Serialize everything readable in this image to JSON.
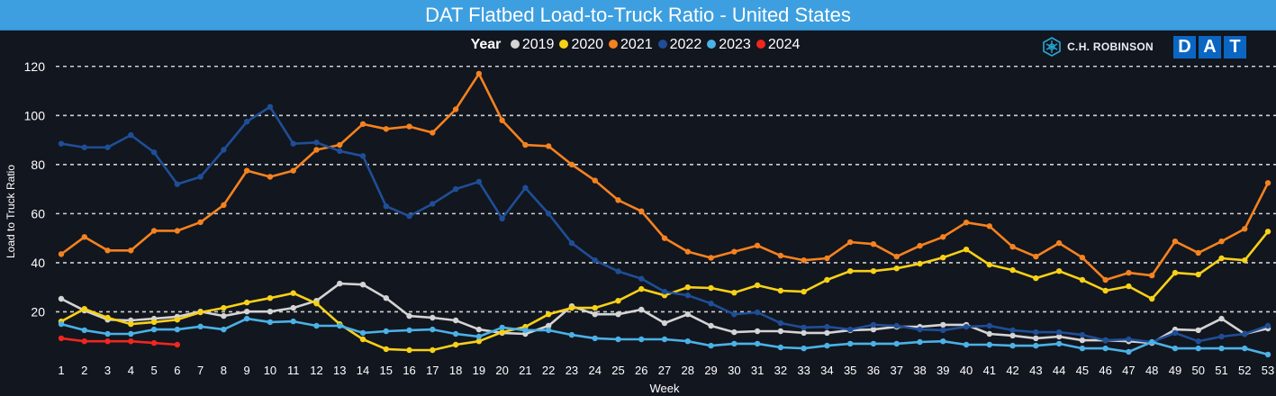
{
  "header": {
    "title": "DAT Flatbed Load-to-Truck Ratio - United States"
  },
  "legend": {
    "title": "Year"
  },
  "logos": {
    "chr_text": "C.H. ROBINSON",
    "dat_letters": [
      "D",
      "A",
      "T"
    ]
  },
  "chart_data": {
    "type": "line",
    "title": "DAT Flatbed Load-to-Truck Ratio - United States",
    "xlabel": "Week",
    "ylabel": "Load to Truck Ratio",
    "ylim": [
      0,
      120
    ],
    "yticks": [
      20,
      40,
      60,
      80,
      100,
      120
    ],
    "grid": true,
    "legend_position": "top-center",
    "x": [
      1,
      2,
      3,
      4,
      5,
      6,
      7,
      8,
      9,
      10,
      11,
      12,
      13,
      14,
      15,
      16,
      17,
      18,
      19,
      20,
      21,
      22,
      23,
      24,
      25,
      26,
      27,
      28,
      29,
      30,
      31,
      32,
      33,
      34,
      35,
      36,
      37,
      38,
      39,
      40,
      41,
      42,
      43,
      44,
      45,
      46,
      47,
      48,
      49,
      50,
      51,
      52,
      53
    ],
    "series": [
      {
        "name": "2019",
        "color": "#d4d4d4",
        "values": [
          25.3,
          20.5,
          16.8,
          16.5,
          17.2,
          18,
          20.1,
          18.3,
          20.1,
          20.1,
          21.6,
          24.5,
          31.5,
          31.1,
          25.6,
          18.3,
          17.6,
          16.5,
          12.8,
          11.4,
          11,
          14.3,
          22.3,
          19,
          19,
          20.9,
          15.4,
          19,
          14.3,
          11.7,
          12.1,
          12.1,
          11.4,
          11.4,
          12.5,
          12.8,
          13.9,
          13.9,
          14.7,
          14.7,
          11,
          10.3,
          9.2,
          9.9,
          8.4,
          8.4,
          8,
          7.3,
          12.8,
          12.5,
          17.2,
          11,
          13.2
        ]
      },
      {
        "name": "2020",
        "color": "#f7d117",
        "values": [
          16.1,
          21.2,
          17.6,
          15,
          15.8,
          16.8,
          19.8,
          21.6,
          23.8,
          25.6,
          27.6,
          23.4,
          15,
          8.8,
          4.8,
          4.4,
          4.4,
          6.6,
          8,
          11.7,
          13.9,
          19,
          21.6,
          21.6,
          24.5,
          29.3,
          26.7,
          30,
          29.7,
          27.8,
          30.8,
          28.6,
          28.2,
          33,
          36.6,
          36.6,
          37.7,
          39.6,
          42.1,
          45.4,
          39.2,
          37,
          33.7,
          36.6,
          33,
          28.6,
          30.4,
          25.3,
          35.9,
          35.2,
          41.8,
          41,
          52.7
        ]
      },
      {
        "name": "2021",
        "color": "#f5821f",
        "values": [
          43.5,
          50.5,
          45,
          45,
          53,
          53,
          56.5,
          63.5,
          77.5,
          75,
          77.5,
          86,
          88,
          96.5,
          94.5,
          95.5,
          93,
          102.5,
          117,
          98,
          88,
          87.5,
          80,
          73.5,
          65.5,
          61,
          50,
          44.5,
          42,
          44.5,
          47,
          42.9,
          41,
          41.8,
          48.4,
          47.6,
          42.5,
          46.9,
          50.5,
          56.4,
          54.9,
          46.5,
          42.5,
          48,
          42.1,
          33,
          35.9,
          34.8,
          48.7,
          44,
          48.7,
          53.8,
          72.5
        ]
      },
      {
        "name": "2022",
        "color": "#1f4e96",
        "values": [
          88.5,
          87,
          87,
          92,
          85,
          72,
          75,
          86,
          97.5,
          103.5,
          88.5,
          89,
          85.5,
          83.5,
          63,
          59,
          64,
          70,
          73,
          58,
          70.5,
          60,
          48,
          41,
          36.5,
          33.5,
          28.2,
          26.7,
          23.4,
          19,
          19.8,
          15.4,
          13.6,
          13.9,
          12.8,
          14.7,
          14.3,
          12.8,
          12.5,
          13.9,
          14.3,
          12.5,
          11.7,
          11.7,
          10.6,
          8.4,
          8.8,
          7.7,
          11.4,
          8,
          9.9,
          11,
          14.3
        ]
      },
      {
        "name": "2023",
        "color": "#4bb1e6",
        "values": [
          15,
          12.5,
          11,
          11,
          12.8,
          12.8,
          14,
          12.8,
          17.2,
          15.8,
          16.1,
          14.3,
          14.3,
          11.4,
          12.1,
          12.5,
          12.8,
          11,
          9.9,
          13.6,
          12.5,
          12.5,
          10.6,
          9.2,
          8.8,
          8.8,
          8.8,
          8,
          6.2,
          7,
          7,
          5.5,
          5.1,
          6.2,
          7,
          7,
          7,
          7.7,
          8,
          6.6,
          6.6,
          6.2,
          6.2,
          7,
          5.1,
          5.1,
          3.7,
          7.7,
          5.1,
          5.1,
          5.1,
          5.1,
          2.6
        ]
      },
      {
        "name": "2024",
        "color": "#f0261f",
        "values": [
          9.2,
          8,
          8,
          8,
          7.3,
          6.6
        ]
      }
    ]
  }
}
